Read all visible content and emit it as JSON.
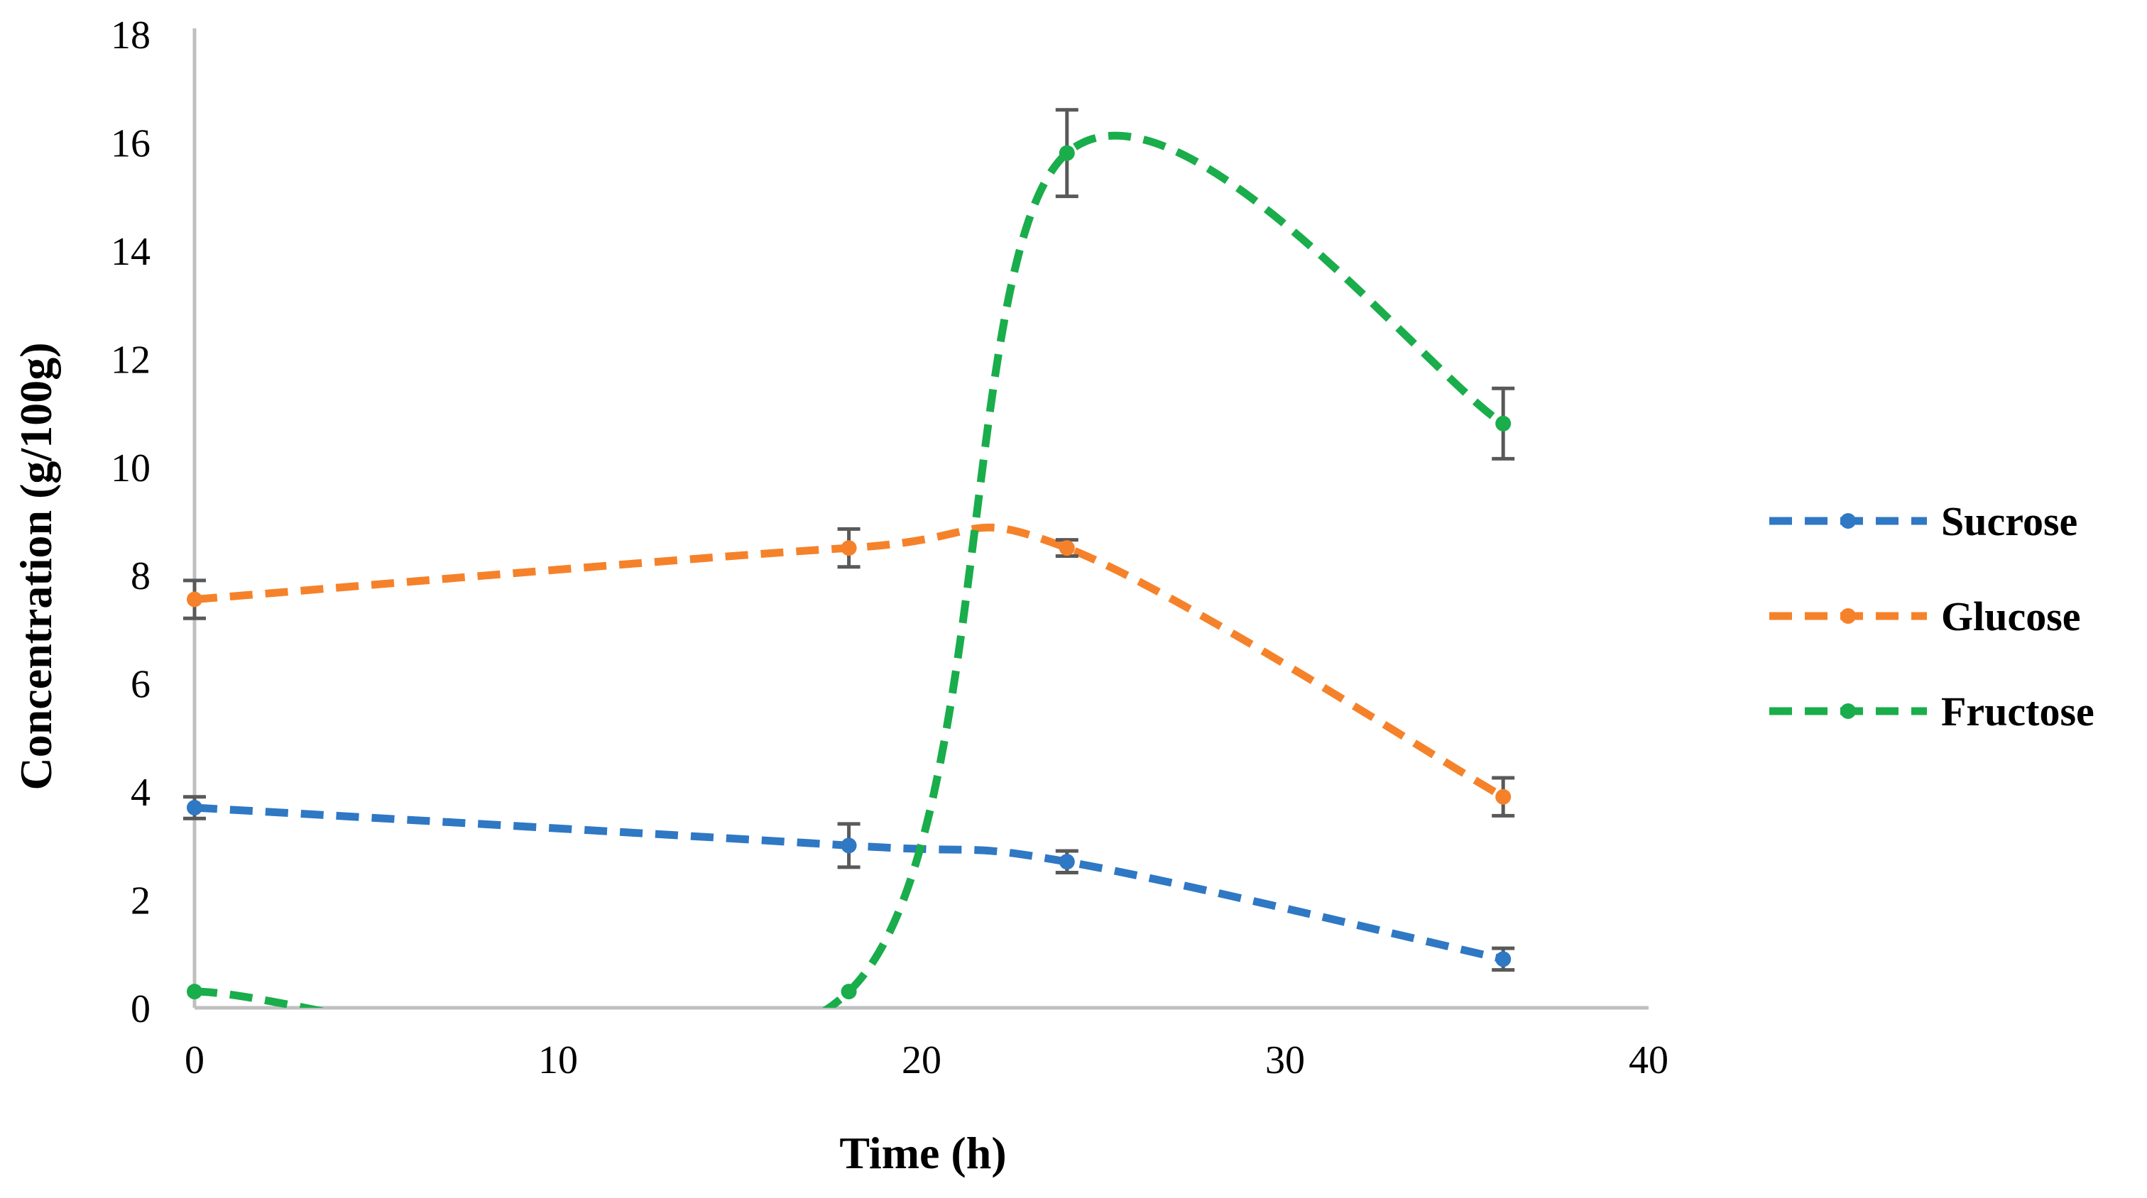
{
  "chart_data": {
    "type": "line",
    "title": "",
    "xlabel": "Time (h)",
    "ylabel": "Concentration (g/100g)",
    "xlim": [
      0,
      40
    ],
    "ylim": [
      0,
      18
    ],
    "x_ticks": [
      0,
      10,
      20,
      30,
      40
    ],
    "y_ticks": [
      0,
      2,
      4,
      6,
      8,
      10,
      12,
      14,
      16,
      18
    ],
    "grid": false,
    "legend_position": "right",
    "smoothed": true,
    "line_style": "dashed",
    "series": [
      {
        "name": "Sucrose",
        "color": "#2f78c4",
        "x": [
          0,
          18,
          24,
          36
        ],
        "y": [
          3.7,
          3.0,
          2.7,
          0.9
        ],
        "error": [
          0.2,
          0.4,
          0.2,
          0.2
        ]
      },
      {
        "name": "Glucose",
        "color": "#f5822a",
        "x": [
          0,
          18,
          24,
          36
        ],
        "y": [
          7.55,
          8.5,
          8.5,
          3.9
        ],
        "error": [
          0.35,
          0.35,
          0.15,
          0.35
        ]
      },
      {
        "name": "Fructose",
        "color": "#1aad4b",
        "x": [
          0,
          18,
          24,
          36
        ],
        "y": [
          0.3,
          0.3,
          15.8,
          10.8
        ],
        "error": [
          0.0,
          0.0,
          0.8,
          0.65
        ]
      }
    ]
  }
}
